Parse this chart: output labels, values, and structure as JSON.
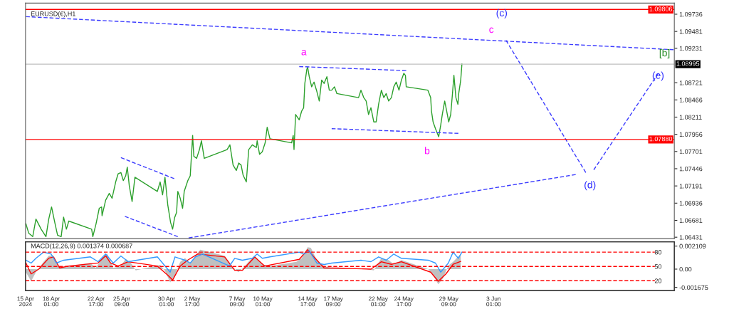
{
  "chart_data": [
    {
      "type": "line",
      "title": "EURUSD(€),H1",
      "tick_labels": "y",
      "xlim": [
        "2024-04-15T09:00",
        "2024-06-21T20:00"
      ],
      "xticks": [
        {
          "value": "2024-04-15T09:00",
          "label": null
        },
        {
          "value": "2024-04-18T01:00",
          "label": null
        },
        {
          "value": "2024-04-22T17:00",
          "label": null
        },
        {
          "value": "2024-04-25T09:00",
          "label": null
        },
        {
          "value": "2024-04-30T01:00",
          "label": null
        },
        {
          "value": "2024-05-02T17:00",
          "label": null
        },
        {
          "value": "2024-05-07T09:00",
          "label": null
        },
        {
          "value": "2024-05-10T01:00",
          "label": null
        },
        {
          "value": "2024-05-14T17:00",
          "label": null
        },
        {
          "value": "2024-05-17T09:00",
          "label": null
        },
        {
          "value": "2024-05-22T01:00",
          "label": null
        },
        {
          "value": "2024-05-24T17:00",
          "label": null
        },
        {
          "value": "2024-05-29T09:00",
          "label": null
        },
        {
          "value": "2024-06-03T01:00",
          "label": null
        }
      ],
      "ylim": [
        1.0641,
        1.099
      ],
      "yticks": [
        1.09736,
        1.09481,
        1.09231,
        1.08721,
        1.08466,
        1.08211,
        1.07956,
        1.07701,
        1.07446,
        1.07191,
        1.06936,
        1.06681,
        1.06431
      ],
      "ref_lines": [
        {
          "axis": "y",
          "value": 1.09806,
          "label": "1.09806",
          "color": "#ff0000"
        },
        {
          "axis": "y",
          "value": 1.0788,
          "label": "1.07880",
          "color": "#ff0000"
        },
        {
          "axis": "y",
          "value": 1.08995,
          "label": "1.08995",
          "color": "#c0c0c0"
        }
      ],
      "annotations": [
        "a",
        "b",
        "c",
        "(c)",
        "(d)",
        "(e)",
        "[b]"
      ],
      "series": [
        {
          "color": "#2ca02c",
          "x": [
            "2024-04-15T10:00",
            "2024-04-15T17:00",
            "2024-04-16T03:00",
            "2024-04-16T11:00",
            "2024-04-17T00:00",
            "2024-04-17T12:00",
            "2024-04-17T19:00",
            "2024-04-18T02:00",
            "2024-04-18T10:00",
            "2024-04-18T17:00",
            "2024-04-19T02:00",
            "2024-04-19T08:00",
            "2024-04-19T15:00",
            "2024-04-19T21:00",
            "2024-04-22T06:00",
            "2024-04-22T09:00",
            "2024-04-22T17:00",
            "2024-04-23T01:00",
            "2024-04-23T07:00",
            "2024-04-23T08:00",
            "2024-04-23T17:00",
            "2024-04-24T02:00",
            "2024-04-24T09:00",
            "2024-04-24T18:00",
            "2024-04-25T00:00",
            "2024-04-25T07:00",
            "2024-04-25T13:00",
            "2024-04-25T19:00",
            "2024-04-25T23:00",
            "2024-04-26T04:00",
            "2024-04-26T11:00",
            "2024-04-26T18:00",
            "2024-04-29T02:00",
            "2024-04-29T09:00",
            "2024-04-29T15:00",
            "2024-04-29T21:00",
            "2024-04-30T04:00",
            "2024-04-30T11:00",
            "2024-04-30T16:00",
            "2024-04-30T21:00",
            "2024-05-01T02:00",
            "2024-05-01T05:00",
            "2024-05-01T11:00",
            "2024-05-01T17:00",
            "2024-05-01T21:00",
            "2024-05-02T06:00",
            "2024-05-02T12:00",
            "2024-05-02T16:00",
            "2024-05-02T18:00",
            "2024-05-02T21:00",
            "2024-05-03T04:00",
            "2024-05-03T11:00",
            "2024-05-03T16:00",
            "2024-05-03T23:00",
            "2024-05-06T08:00",
            "2024-05-06T15:00",
            "2024-05-06T23:00",
            "2024-05-07T07:00",
            "2024-05-07T13:00",
            "2024-05-07T19:00",
            "2024-05-08T00:00",
            "2024-05-08T08:00",
            "2024-05-08T14:00",
            "2024-05-08T23:00",
            "2024-05-09T09:00",
            "2024-05-09T11:00",
            "2024-05-09T17:00",
            "2024-05-10T00:00",
            "2024-05-10T07:00",
            "2024-05-10T12:00",
            "2024-05-10T19:00",
            "2024-05-13T01:00",
            "2024-05-13T05:00",
            "2024-05-13T07:00",
            "2024-05-13T11:00",
            "2024-05-13T20:00",
            "2024-05-14T02:00",
            "2024-05-14T07:00",
            "2024-05-14T10:00",
            "2024-05-14T15:00",
            "2024-05-14T17:00",
            "2024-05-14T21:00",
            "2024-05-15T03:00",
            "2024-05-15T09:00",
            "2024-05-15T16:00",
            "2024-05-15T22:00",
            "2024-05-16T04:00",
            "2024-05-16T10:00",
            "2024-05-16T17:00",
            "2024-05-16T23:00",
            "2024-05-17T05:00",
            "2024-05-17T12:00",
            "2024-05-17T18:00",
            "2024-05-20T00:00",
            "2024-05-20T06:00",
            "2024-05-20T13:00",
            "2024-05-20T19:00",
            "2024-05-21T01:00",
            "2024-05-21T07:00",
            "2024-05-21T14:00",
            "2024-05-21T20:00",
            "2024-05-22T02:00",
            "2024-05-22T09:00",
            "2024-05-22T15:00",
            "2024-05-22T21:00",
            "2024-05-23T03:00",
            "2024-05-23T10:00",
            "2024-05-23T16:00",
            "2024-05-23T22:00",
            "2024-05-24T05:00",
            "2024-05-24T11:00",
            "2024-05-24T17:00",
            "2024-05-24T21:00",
            "2024-05-24T23:00",
            "2024-05-27T05:00",
            "2024-05-27T12:00",
            "2024-05-27T14:00",
            "2024-05-27T18:00",
            "2024-05-28T00:00",
            "2024-05-28T08:00",
            "2024-05-28T13:00",
            "2024-05-28T17:00",
            "2024-05-28T23:00",
            "2024-05-29T04:00",
            "2024-05-29T09:00",
            "2024-05-29T14:00",
            "2024-05-29T18:00",
            "2024-05-29T22:00",
            "2024-05-30T03:00",
            "2024-05-30T08:00",
            "2024-05-30T10:00",
            "2024-05-30T15:00",
            "2024-05-30T18:00"
          ],
          "values": [
            1.0663,
            1.0649,
            1.0644,
            1.067,
            1.0655,
            1.0644,
            1.067,
            1.0688,
            1.0665,
            1.0646,
            1.0644,
            1.0673,
            1.0655,
            1.0667,
            1.0655,
            1.0644,
            1.0663,
            1.0686,
            1.0688,
            1.0675,
            1.0698,
            1.0708,
            1.0701,
            1.0725,
            1.0737,
            1.0739,
            1.0727,
            1.0734,
            1.0747,
            1.0719,
            1.0696,
            1.0732,
            1.0711,
            1.0725,
            1.0706,
            1.0732,
            1.0691,
            1.0665,
            1.0655,
            1.0672,
            1.068,
            1.0711,
            1.0701,
            1.0686,
            1.0711,
            1.0727,
            1.0734,
            1.0773,
            1.0794,
            1.0763,
            1.076,
            1.0773,
            1.0786,
            1.076,
            1.0773,
            1.078,
            1.075,
            1.0742,
            1.0753,
            1.075,
            1.0735,
            1.0725,
            1.0773,
            1.078,
            1.0776,
            1.0786,
            1.0766,
            1.077,
            1.0783,
            1.0806,
            1.0789,
            1.0783,
            1.0794,
            1.0773,
            1.0825,
            1.0817,
            1.083,
            1.0835,
            1.0871,
            1.0892,
            1.0895,
            1.0881,
            1.0866,
            1.0873,
            1.0859,
            1.0845,
            1.0876,
            1.0871,
            1.0881,
            1.0861,
            1.0861,
            1.0866,
            1.0856,
            1.085,
            1.0861,
            1.085,
            1.0845,
            1.0825,
            1.0835,
            1.0814,
            1.0814,
            1.084,
            1.0861,
            1.085,
            1.0856,
            1.0845,
            1.085,
            1.0866,
            1.0873,
            1.0861,
            1.0876,
            1.0886,
            1.0883,
            1.0866,
            1.0861,
            1.085,
            1.083,
            1.0814,
            1.0804,
            1.0792,
            1.0809,
            1.0825,
            1.0845,
            1.083,
            1.0814,
            1.0825,
            1.0853,
            1.0883,
            1.085,
            1.084,
            1.0856,
            1.0876,
            1.09
          ]
        },
        {
          "color": "#3c3cff",
          "line_style": "dashed",
          "x": [
            "2024-04-15T10:00",
            "2024-06-21T18:00"
          ],
          "values": [
            1.097,
            1.0921
          ]
        },
        {
          "color": "#3c3cff",
          "line_style": "dashed",
          "x": [
            "2024-05-13T20:00",
            "2024-05-24T23:00"
          ],
          "values": [
            1.0896,
            1.089
          ]
        },
        {
          "color": "#3c3cff",
          "line_style": "dashed",
          "x": [
            "2024-05-17T05:00",
            "2024-05-30T09:00"
          ],
          "values": [
            1.0804,
            1.0797
          ]
        },
        {
          "color": "#3c3cff",
          "line_style": "dashed",
          "x": [
            "2024-04-25T07:00",
            "2024-04-30T20:00"
          ],
          "values": [
            1.0761,
            1.073
          ]
        },
        {
          "color": "#3c3cff",
          "line_style": "dashed",
          "x": [
            "2024-04-25T17:00",
            "2024-05-01T05:00"
          ],
          "values": [
            1.0674,
            1.0644
          ]
        },
        {
          "color": "#3c3cff",
          "line_style": "dashed",
          "x": [
            "2024-05-02T08:00",
            "2024-06-11T14:00"
          ],
          "values": [
            1.0642,
            1.0736
          ]
        },
        {
          "color": "#3c3cff",
          "line_style": "dashed",
          "x": [
            "2024-06-04T08:00",
            "2024-06-12T15:00"
          ],
          "values": [
            1.0935,
            1.0739
          ]
        },
        {
          "color": "#3c3cff",
          "line_style": "dashed",
          "x": [
            "2024-06-13T11:00",
            "2024-06-20T04:00"
          ],
          "values": [
            1.0743,
            1.0886
          ]
        }
      ]
    },
    {
      "type": "line",
      "title": "MACD(12,26,9) 0.001374 0.000687",
      "xlim": [
        "2024-04-15T09:00",
        "2024-06-21T20:00"
      ],
      "xticks": [
        {
          "value": "2024-04-15T09:00",
          "label": "15 Apr 2024"
        },
        {
          "value": "2024-04-18T01:00",
          "label": "18 Apr 01:00"
        },
        {
          "value": "2024-04-22T17:00",
          "label": "22 Apr 17:00"
        },
        {
          "value": "2024-04-25T09:00",
          "label": "25 Apr 09:00"
        },
        {
          "value": "2024-04-30T01:00",
          "label": "30 Apr 01:00"
        },
        {
          "value": "2024-05-02T17:00",
          "label": "2 May 17:00"
        },
        {
          "value": "2024-05-07T09:00",
          "label": "7 May 09:00"
        },
        {
          "value": "2024-05-10T01:00",
          "label": "10 May 01:00"
        },
        {
          "value": "2024-05-14T17:00",
          "label": "14 May 17:00"
        },
        {
          "value": "2024-05-17T09:00",
          "label": "17 May 09:00"
        },
        {
          "value": "2024-05-22T01:00",
          "label": "22 May 01:00"
        },
        {
          "value": "2024-05-24T17:00",
          "label": "24 May 17:00"
        },
        {
          "value": "2024-05-29T09:00",
          "label": "29 May 09:00"
        },
        {
          "value": "2024-06-03T01:00",
          "label": "3 Jun 01:00"
        }
      ],
      "ylim": [
        -0.00195,
        0.0025
      ],
      "yticks": [
        0.002109,
        {
          "value": 0,
          "label": "0.00"
        },
        -0.001675
      ],
      "y2lim": [
        -0.4,
        101.7
      ],
      "y2ticks": [
        80,
        50,
        20
      ],
      "ref_lines": [
        {
          "axis": "y2",
          "value": 80,
          "color": "#ff0000",
          "line_style": "dashed"
        },
        {
          "axis": "y2",
          "value": 50,
          "color": "#ff0000",
          "line_style": "dashed"
        },
        {
          "axis": "y2",
          "value": 20,
          "color": "#ff0000",
          "line_style": "dashed"
        }
      ],
      "series": [
        {
          "type": "area",
          "color": "#c0c0c0",
          "x": [
            "2024-04-15T10:00",
            "2024-04-15T23:00",
            "2024-04-16T11:00",
            "2024-04-17T06:00",
            "2024-04-17T19:00",
            "2024-04-18T05:00",
            "2024-04-18T20:00",
            "2024-04-19T08:00",
            "2024-04-22T03:00",
            "2024-04-22T16:00",
            "2024-04-23T11:00",
            "2024-04-23T21:00",
            "2024-04-24T12:00",
            "2024-04-25T07:00",
            "2024-04-25T19:00",
            "2024-04-26T08:00",
            "2024-04-26T20:00",
            "2024-04-29T09:00",
            "2024-04-29T21:00",
            "2024-04-30T10:00",
            "2024-04-30T22:00",
            "2024-05-01T11:00",
            "2024-05-01T23:00",
            "2024-05-02T12:00",
            "2024-05-03T01:00",
            "2024-05-03T13:00",
            "2024-05-06T02:00",
            "2024-05-06T20:00",
            "2024-05-07T12:00",
            "2024-05-08T00:00",
            "2024-05-08T16:00",
            "2024-05-09T05:00",
            "2024-05-10T00:00",
            "2024-05-10T19:00",
            "2024-05-13T13:00",
            "2024-05-14T02:00",
            "2024-05-14T17:00",
            "2024-05-15T01:00",
            "2024-05-15T16:00",
            "2024-05-16T10:00",
            "2024-05-17T05:00",
            "2024-05-20T00:00",
            "2024-05-20T19:00",
            "2024-05-21T14:00",
            "2024-05-22T09:00",
            "2024-05-23T03:00",
            "2024-05-23T16:00",
            "2024-05-24T11:00",
            "2024-05-27T06:00",
            "2024-05-27T18:00",
            "2024-05-28T07:00",
            "2024-05-28T19:00",
            "2024-05-29T08:00",
            "2024-05-29T20:00",
            "2024-05-30T15:00"
          ],
          "values": [
            -0.00028,
            -0.00111,
            -0.00028,
            0.00067,
            0.00122,
            0.00128,
            0.00028,
            0.00017,
            0.00056,
            0.00011,
            0.00111,
            0.00139,
            0.00011,
            0.00028,
            0.00095,
            0.00056,
            -0.00011,
            0.00039,
            -0.00017,
            -0.00122,
            -0.00056,
            0.00067,
            0.001,
            0.00056,
            0.00122,
            0.00178,
            0.00122,
            0.00028,
            -0.00028,
            0.00011,
            0.00078,
            0.00122,
            0.00044,
            0.00028,
            0.00067,
            0.001,
            0.002,
            0.00195,
            0.00083,
            0.00028,
            0.00011,
            0,
            0,
            -0.00011,
            0.001,
            0.00083,
            0.00044,
            0.00083,
            0,
            -0.00056,
            -0.00139,
            -0.00083,
            0.00033,
            0.00067,
            0.0014
          ]
        },
        {
          "color": "#ff0000",
          "x": [
            "2024-04-15T10:00",
            "2024-04-15T23:00",
            "2024-04-16T18:00",
            "2024-04-17T19:00",
            "2024-04-18T07:00",
            "2024-04-18T22:00",
            "2024-04-19T21:00",
            "2024-04-22T22:00",
            "2024-04-23T17:00",
            "2024-04-24T05:00",
            "2024-04-25T00:00",
            "2024-04-26T01:00",
            "2024-04-29T02:00",
            "2024-04-30T04:00",
            "2024-04-30T16:00",
            "2024-05-01T11:00",
            "2024-05-02T06:00",
            "2024-05-03T07:00",
            "2024-05-06T02:00",
            "2024-05-07T03:00",
            "2024-05-07T22:00",
            "2024-05-09T05:00",
            "2024-05-10T06:00",
            "2024-05-13T20:00",
            "2024-05-14T17:00",
            "2024-05-15T09:00",
            "2024-05-16T10:00",
            "2024-05-17T18:00",
            "2024-05-21T07:00",
            "2024-05-22T09:00",
            "2024-05-23T10:00",
            "2024-05-24T11:00",
            "2024-05-27T12:00",
            "2024-05-28T07:00",
            "2024-05-29T02:00",
            "2024-05-29T20:00",
            "2024-05-30T15:00"
          ],
          "values": [
            0.00056,
            -0.00044,
            0,
            0.001,
            0.00111,
            0.00011,
            0.00028,
            0.00056,
            0.00122,
            0.00056,
            0.00028,
            0.00067,
            0.00028,
            -0.00056,
            -0.001,
            0.00028,
            0.00083,
            0.00139,
            0.00111,
            -0.00011,
            -0.00011,
            0.00111,
            0.00028,
            0.00089,
            0.00178,
            0.00111,
            0.00011,
            0.0001,
            0,
            0.00067,
            0.00044,
            0.00067,
            -0.00028,
            -0.00111,
            -0.00044,
            0.00044,
            0.0007
          ]
        },
        {
          "color": "#3399ff",
          "axis": "y2",
          "x": [
            "2024-04-15T10:00",
            "2024-04-15T23:00",
            "2024-04-16T11:00",
            "2024-04-17T06:00",
            "2024-04-18T01:00",
            "2024-04-18T14:00",
            "2024-04-19T08:00",
            "2024-04-22T03:00",
            "2024-04-22T22:00",
            "2024-04-23T17:00",
            "2024-04-24T12:00",
            "2024-04-25T07:00",
            "2024-04-26T01:00",
            "2024-04-29T02:00",
            "2024-04-29T21:00",
            "2024-04-30T10:00",
            "2024-04-30T22:00",
            "2024-05-01T23:00",
            "2024-05-02T12:00",
            "2024-05-03T01:00",
            "2024-05-03T19:00",
            "2024-05-06T14:00",
            "2024-05-07T03:00",
            "2024-05-07T22:00",
            "2024-05-08T23:00",
            "2024-05-09T11:00",
            "2024-05-10T00:00",
            "2024-05-10T19:00",
            "2024-05-13T20:00",
            "2024-05-14T08:00",
            "2024-05-14T21:00",
            "2024-05-15T16:00",
            "2024-05-16T10:00",
            "2024-05-17T05:00",
            "2024-05-20T06:00",
            "2024-05-21T07:00",
            "2024-05-22T02:00",
            "2024-05-22T21:00",
            "2024-05-23T16:00",
            "2024-05-24T11:00",
            "2024-05-27T06:00",
            "2024-05-28T00:00",
            "2024-05-28T13:00",
            "2024-05-29T08:00",
            "2024-05-29T20:00",
            "2024-05-30T09:00",
            "2024-05-30T18:00"
          ],
          "values": [
            63,
            57,
            67,
            80,
            76,
            57,
            63,
            70,
            60,
            76,
            57,
            72,
            60,
            70,
            51,
            38,
            70,
            63,
            57,
            70,
            76,
            51,
            67,
            63,
            67,
            76,
            67,
            70,
            80,
            76,
            83,
            57,
            54,
            57,
            63,
            60,
            70,
            63,
            76,
            67,
            63,
            57,
            38,
            57,
            80,
            67,
            80
          ]
        }
      ]
    }
  ]
}
